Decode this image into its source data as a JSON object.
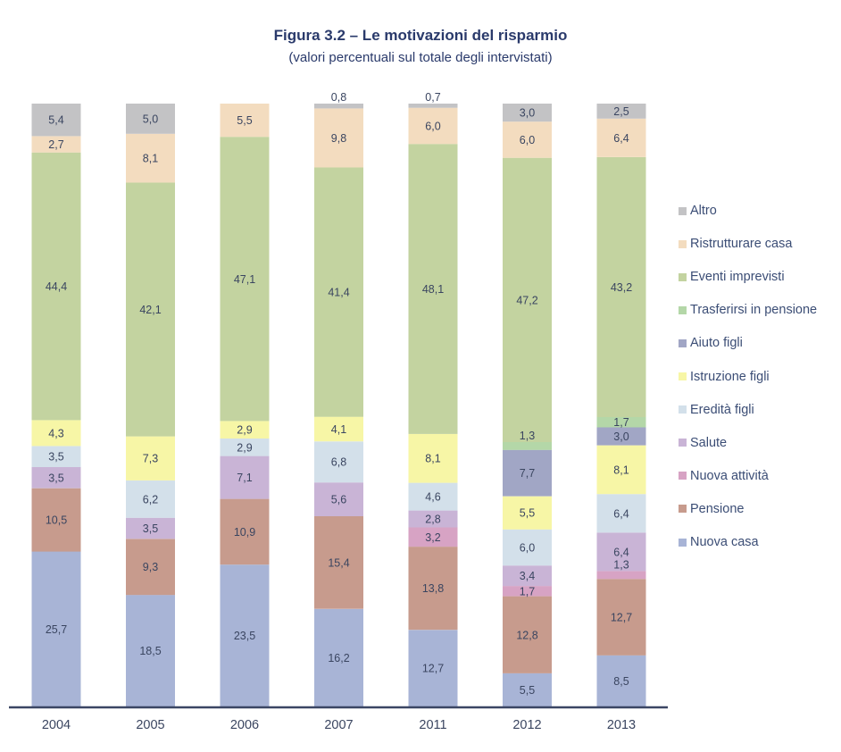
{
  "title": "Figura 3.2 – Le motivazioni del risparmio",
  "subtitle": "(valori percentuali sul totale degli intervistati)",
  "chart_data": {
    "type": "bar",
    "stacked": true,
    "title": "Figura 3.2 – Le motivazioni del risparmio",
    "subtitle": "(valori percentuali sul totale degli intervistati)",
    "xlabel": "",
    "ylabel": "",
    "ylim": [
      0,
      100
    ],
    "grid": false,
    "legend_position": "right",
    "categories": [
      "2004",
      "2005",
      "2006",
      "2007",
      "2011",
      "2012",
      "2013"
    ],
    "series": [
      {
        "name": "Nuova casa",
        "color": "#a8b4d6",
        "values": [
          25.7,
          18.5,
          23.5,
          16.2,
          12.7,
          5.5,
          8.5
        ],
        "labels": [
          "25,7",
          "18,5",
          "23,5",
          "16,2",
          "12,7",
          "5,5",
          "8,5"
        ]
      },
      {
        "name": "Pensione",
        "color": "#c79b8d",
        "values": [
          10.5,
          9.3,
          10.9,
          15.4,
          13.8,
          12.8,
          12.7
        ],
        "labels": [
          "10,5",
          "9,3",
          "10,9",
          "15,4",
          "13,8",
          "12,8",
          "12,7"
        ]
      },
      {
        "name": "Nuova attività",
        "color": "#d7a3c4",
        "values": [
          0,
          0,
          0,
          0,
          3.2,
          1.7,
          1.3
        ],
        "labels": [
          "",
          "",
          "",
          "",
          "3,2",
          "1,7",
          "1,3"
        ]
      },
      {
        "name": "Salute",
        "color": "#c9b4d6",
        "values": [
          3.5,
          3.5,
          7.1,
          5.6,
          2.8,
          3.4,
          6.4
        ],
        "labels": [
          "3,5",
          "3,5",
          "7,1",
          "5,6",
          "2,8",
          "3,4",
          "6,4"
        ]
      },
      {
        "name": "Eredità figli",
        "color": "#d3e0ea",
        "values": [
          3.5,
          6.2,
          2.9,
          6.8,
          4.6,
          6.0,
          6.4
        ],
        "labels": [
          "3,5",
          "6,2",
          "2,9",
          "6,8",
          "4,6",
          "6,0",
          "6,4"
        ]
      },
      {
        "name": "Istruzione figli",
        "color": "#f7f6a6",
        "values": [
          4.3,
          7.3,
          2.9,
          4.1,
          8.1,
          5.5,
          8.1
        ],
        "labels": [
          "4,3",
          "7,3",
          "2,9",
          "4,1",
          "8,1",
          "5,5",
          "8,1"
        ]
      },
      {
        "name": "Aiuto figli",
        "color": "#a1a6c5",
        "values": [
          0,
          0,
          0,
          0,
          0,
          7.7,
          3.0
        ],
        "labels": [
          "",
          "",
          "",
          "",
          "",
          "7,7",
          "3,0"
        ]
      },
      {
        "name": "Trasferirsi in pensione",
        "color": "#b4d7a8",
        "values": [
          0,
          0,
          0,
          0,
          0,
          1.3,
          1.7
        ],
        "labels": [
          "",
          "",
          "",
          "",
          "",
          "1,3",
          "1,7"
        ]
      },
      {
        "name": "Eventi imprevisti",
        "color": "#c3d3a0",
        "values": [
          44.4,
          42.1,
          47.1,
          41.4,
          48.1,
          47.2,
          43.2
        ],
        "labels": [
          "44,4",
          "42,1",
          "47,1",
          "41,4",
          "48,1",
          "47,2",
          "43,2"
        ]
      },
      {
        "name": "Ristrutturare casa",
        "color": "#f3dcbf",
        "values": [
          2.7,
          8.1,
          5.5,
          9.8,
          6.0,
          6.0,
          6.4
        ],
        "labels": [
          "2,7",
          "8,1",
          "5,5",
          "9,8",
          "6,0",
          "6,0",
          "6,4"
        ]
      },
      {
        "name": "Altro",
        "color": "#c3c3c5",
        "values": [
          5.4,
          5.0,
          0,
          0.8,
          0.7,
          3.0,
          2.5
        ],
        "labels": [
          "5,4",
          "5,0",
          "",
          "0,8",
          "0,7",
          "3,0",
          "2,5"
        ]
      }
    ],
    "legend_order": [
      "Altro",
      "Ristrutturare casa",
      "Eventi imprevisti",
      "Trasferirsi in pensione",
      "Aiuto figli",
      "Istruzione figli",
      "Eredità figli",
      "Salute",
      "Nuova attività",
      "Pensione",
      "Nuova casa"
    ]
  }
}
